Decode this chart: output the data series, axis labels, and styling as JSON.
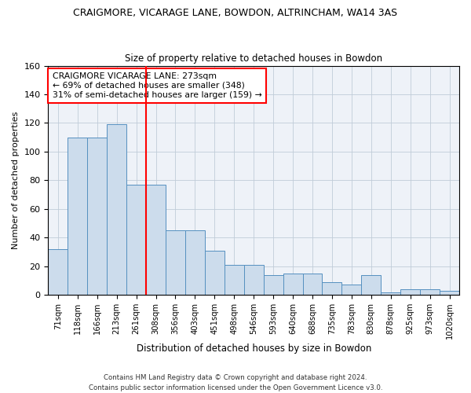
{
  "title1": "CRAIGMORE, VICARAGE LANE, BOWDON, ALTRINCHAM, WA14 3AS",
  "title2": "Size of property relative to detached houses in Bowdon",
  "xlabel": "Distribution of detached houses by size in Bowdon",
  "ylabel": "Number of detached properties",
  "categories": [
    "71sqm",
    "118sqm",
    "166sqm",
    "213sqm",
    "261sqm",
    "308sqm",
    "356sqm",
    "403sqm",
    "451sqm",
    "498sqm",
    "546sqm",
    "593sqm",
    "640sqm",
    "688sqm",
    "735sqm",
    "783sqm",
    "830sqm",
    "878sqm",
    "925sqm",
    "973sqm",
    "1020sqm"
  ],
  "values": [
    32,
    110,
    110,
    119,
    77,
    77,
    45,
    45,
    31,
    21,
    21,
    14,
    15,
    15,
    9,
    7,
    14,
    2,
    4,
    4,
    3
  ],
  "bar_color": "#ccdcec",
  "bar_edge_color": "#5590c0",
  "vline_color": "red",
  "ylim": [
    0,
    160
  ],
  "yticks": [
    0,
    20,
    40,
    60,
    80,
    100,
    120,
    140,
    160
  ],
  "annotation_line1": "CRAIGMORE VICARAGE LANE: 273sqm",
  "annotation_line2": "← 69% of detached houses are smaller (348)",
  "annotation_line3": "31% of semi-detached houses are larger (159) →",
  "footer": "Contains HM Land Registry data © Crown copyright and database right 2024.\nContains public sector information licensed under the Open Government Licence v3.0.",
  "bg_color": "#eef2f8",
  "grid_color": "#c0ccd8"
}
